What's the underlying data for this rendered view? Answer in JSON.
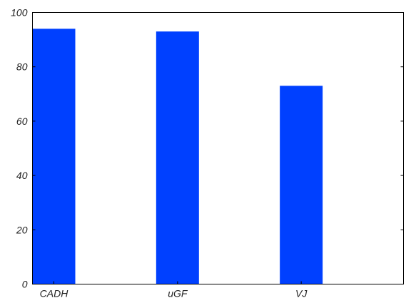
{
  "chart_data": {
    "type": "bar",
    "categories": [
      "CADH",
      "uGF",
      "VJ"
    ],
    "values": [
      94,
      93,
      73
    ],
    "title": "",
    "xlabel": "",
    "ylabel": "",
    "ylim": [
      0,
      100
    ],
    "yticks": [
      0,
      20,
      40,
      60,
      80,
      100
    ],
    "grid": false,
    "bar_color": "#0040ff"
  }
}
